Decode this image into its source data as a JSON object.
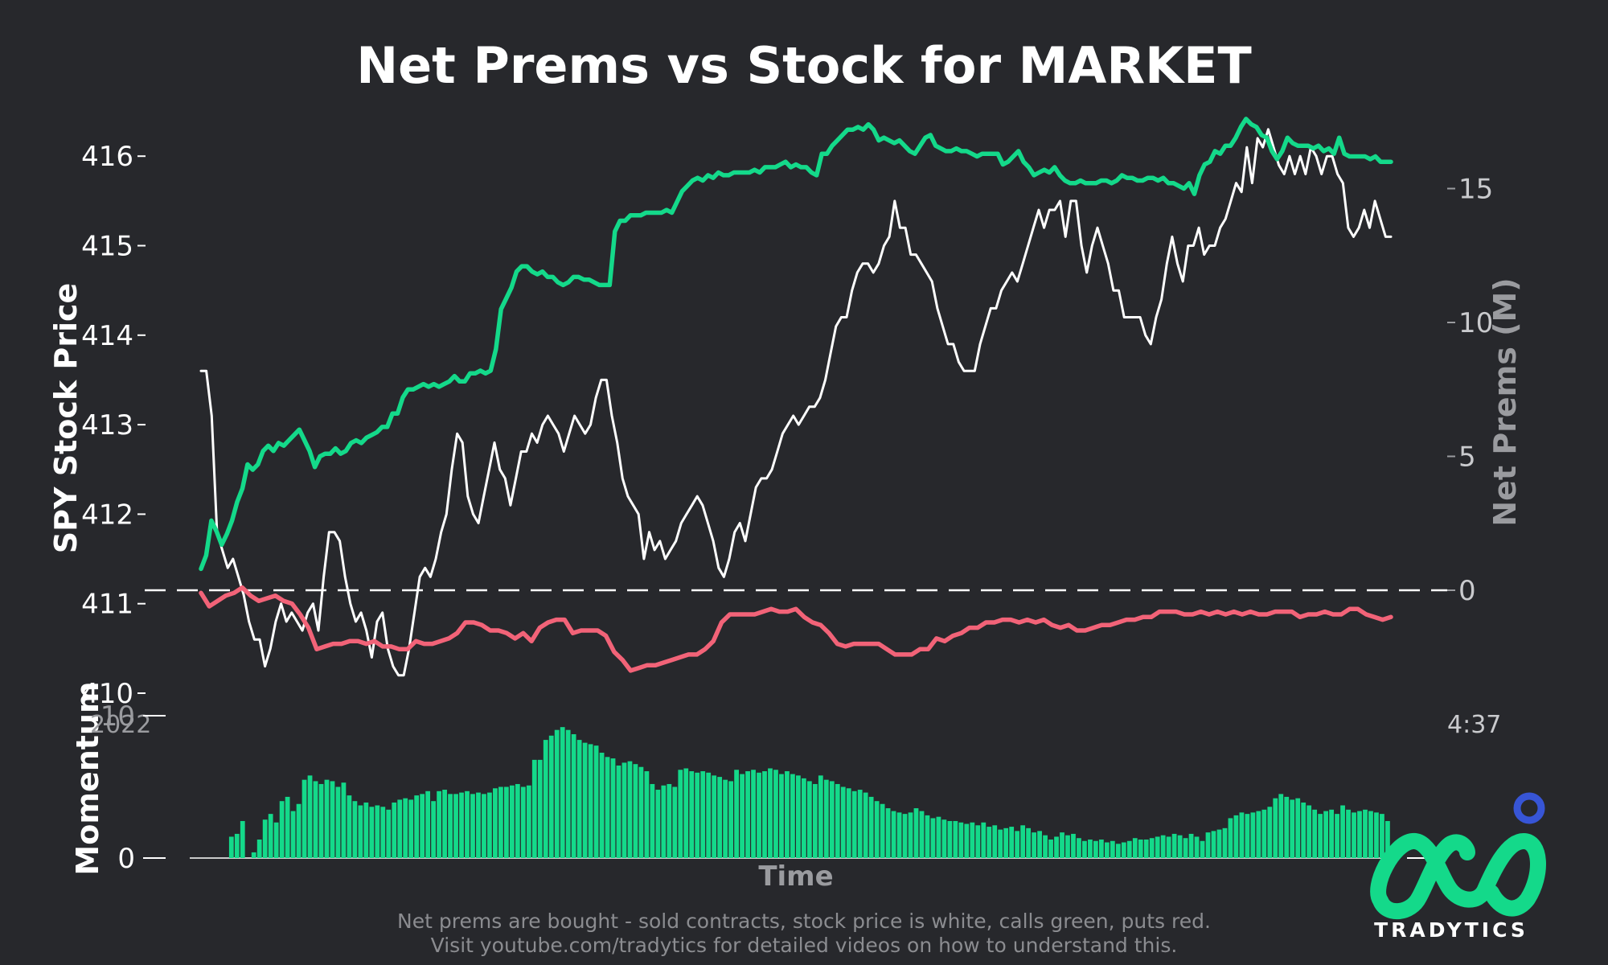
{
  "footnote": {
    "line1": "Net prems are bought - sold contracts, stock price is white, calls green, puts red.",
    "line2": "Visit youtube.com/tradytics for detailed videos on how to understand this."
  },
  "logo": {
    "wordmark": "TRADYTICS",
    "icon": "tradytics-infinity-logo",
    "accent_color": "#3755d6",
    "color": "#14d98a"
  },
  "colors": {
    "background": "#27282c",
    "stock": "#ffffff",
    "calls": "#14d98a",
    "puts": "#f26378",
    "momentum": "#14d98a",
    "axis_text": "#ffffff",
    "right_axis_text": "#9a9b9f"
  },
  "chart_data": [
    {
      "type": "line",
      "title": "Net Prems vs Stock for MARKET",
      "xlabel": "",
      "ylabel": "SPY Stock Price",
      "ylabel_right": "Net Prems (M)",
      "x_tick_labels": [
        "2022",
        "4:37"
      ],
      "ylim": [
        410,
        416.3
      ],
      "ylim_right": [
        -3,
        15.3
      ],
      "yticks": [
        410,
        411,
        412,
        413,
        414,
        415,
        416
      ],
      "yticks_right": [
        0,
        5,
        10,
        15
      ],
      "zero_line": "dashed at net prems 0",
      "grid": false,
      "series": [
        {
          "name": "SPY",
          "axis": "left",
          "color": "#ffffff",
          "values": [
            413.6,
            413.6,
            413.1,
            411.8,
            411.6,
            411.4,
            411.5,
            411.3,
            411.1,
            410.8,
            410.6,
            410.6,
            410.3,
            410.5,
            410.8,
            411.0,
            410.8,
            410.9,
            410.8,
            410.7,
            410.9,
            411.0,
            410.7,
            411.3,
            411.8,
            411.8,
            411.7,
            411.3,
            411.0,
            410.8,
            410.9,
            410.7,
            410.4,
            410.8,
            410.9,
            410.5,
            410.3,
            410.2,
            410.2,
            410.5,
            410.9,
            411.3,
            411.4,
            411.3,
            411.5,
            411.8,
            412.0,
            412.5,
            412.9,
            412.8,
            412.2,
            412.0,
            411.9,
            412.2,
            412.5,
            412.8,
            412.5,
            412.4,
            412.1,
            412.4,
            412.7,
            412.7,
            412.9,
            412.8,
            413.0,
            413.1,
            413.0,
            412.9,
            412.7,
            412.9,
            413.1,
            413.0,
            412.9,
            413.0,
            413.3,
            413.5,
            413.5,
            413.1,
            412.8,
            412.4,
            412.2,
            412.1,
            412.0,
            411.5,
            411.8,
            411.6,
            411.7,
            411.5,
            411.6,
            411.7,
            411.9,
            412.0,
            412.1,
            412.2,
            412.1,
            411.9,
            411.7,
            411.4,
            411.3,
            411.5,
            411.8,
            411.9,
            411.7,
            412.0,
            412.3,
            412.4,
            412.4,
            412.5,
            412.7,
            412.9,
            413.0,
            413.1,
            413.0,
            413.1,
            413.2,
            413.2,
            413.3,
            413.5,
            413.8,
            414.1,
            414.2,
            414.2,
            414.5,
            414.7,
            414.8,
            414.8,
            414.7,
            414.8,
            415.0,
            415.1,
            415.5,
            415.2,
            415.2,
            414.9,
            414.9,
            414.8,
            414.7,
            414.6,
            414.3,
            414.1,
            413.9,
            413.9,
            413.7,
            413.6,
            413.6,
            413.6,
            413.9,
            414.1,
            414.3,
            414.3,
            414.5,
            414.6,
            414.7,
            414.6,
            414.8,
            415.0,
            415.2,
            415.4,
            415.2,
            415.4,
            415.4,
            415.5,
            415.1,
            415.5,
            415.5,
            415.0,
            414.7,
            415.0,
            415.2,
            415.0,
            414.8,
            414.5,
            414.5,
            414.2,
            414.2,
            414.2,
            414.2,
            414.0,
            413.9,
            414.2,
            414.4,
            414.8,
            415.1,
            414.8,
            414.6,
            415.0,
            415.0,
            415.2,
            414.9,
            415.0,
            415.0,
            415.2,
            415.3,
            415.5,
            415.7,
            415.6,
            416.1,
            415.7,
            416.2,
            416.1,
            416.3,
            416.1,
            415.9,
            415.8,
            416.0,
            415.8,
            416.0,
            415.8,
            416.1,
            416.0,
            415.8,
            416.0,
            416.0,
            415.8,
            415.7,
            415.2,
            415.1,
            415.2,
            415.4,
            415.2,
            415.5,
            415.3,
            415.1,
            415.1
          ]
        },
        {
          "name": "Calls",
          "axis": "right",
          "color": "#14d98a",
          "values": [
            0.8,
            1.3,
            2.6,
            2.2,
            1.7,
            2.1,
            2.6,
            3.3,
            3.8,
            4.7,
            4.5,
            4.7,
            5.2,
            5.4,
            5.2,
            5.5,
            5.4,
            5.6,
            5.8,
            6.0,
            5.6,
            5.2,
            4.6,
            5.0,
            5.1,
            5.1,
            5.3,
            5.1,
            5.2,
            5.5,
            5.6,
            5.5,
            5.7,
            5.8,
            5.9,
            6.1,
            6.1,
            6.6,
            6.6,
            7.2,
            7.5,
            7.5,
            7.6,
            7.7,
            7.6,
            7.7,
            7.6,
            7.7,
            7.8,
            8.0,
            7.8,
            7.8,
            8.1,
            8.1,
            8.2,
            8.1,
            8.2,
            9.0,
            10.5,
            10.9,
            11.3,
            11.9,
            12.1,
            12.1,
            11.9,
            11.8,
            11.9,
            11.7,
            11.7,
            11.5,
            11.4,
            11.5,
            11.7,
            11.7,
            11.6,
            11.6,
            11.5,
            11.4,
            11.4,
            11.4,
            13.4,
            13.8,
            13.8,
            14.0,
            14.0,
            14.0,
            14.1,
            14.1,
            14.1,
            14.1,
            14.2,
            14.1,
            14.5,
            14.9,
            15.1,
            15.3,
            15.4,
            15.3,
            15.5,
            15.4,
            15.6,
            15.5,
            15.5,
            15.6,
            15.6,
            15.6,
            15.6,
            15.7,
            15.6,
            15.8,
            15.8,
            15.8,
            15.9,
            16.0,
            15.8,
            15.9,
            15.8,
            15.8,
            15.6,
            15.5,
            16.3,
            16.3,
            16.6,
            16.8,
            17.0,
            17.2,
            17.2,
            17.3,
            17.2,
            17.4,
            17.2,
            16.8,
            16.9,
            16.8,
            16.7,
            16.8,
            16.6,
            16.4,
            16.3,
            16.6,
            16.9,
            17.0,
            16.6,
            16.5,
            16.4,
            16.4,
            16.5,
            16.4,
            16.4,
            16.3,
            16.2,
            16.3,
            16.3,
            16.3,
            16.3,
            15.9,
            16.0,
            16.2,
            16.4,
            16.0,
            15.8,
            15.5,
            15.6,
            15.7,
            15.6,
            15.8,
            15.5,
            15.3,
            15.2,
            15.2,
            15.3,
            15.2,
            15.2,
            15.2,
            15.3,
            15.3,
            15.2,
            15.3,
            15.5,
            15.4,
            15.4,
            15.3,
            15.3,
            15.4,
            15.4,
            15.3,
            15.4,
            15.2,
            15.2,
            15.1,
            15.0,
            15.2,
            14.8,
            15.5,
            15.9,
            16.0,
            16.4,
            16.3,
            16.6,
            16.6,
            16.9,
            17.3,
            17.6,
            17.4,
            17.3,
            17.0,
            16.9,
            16.4,
            16.1,
            16.4,
            16.9,
            16.7,
            16.6,
            16.6,
            16.6,
            16.5,
            16.6,
            16.4,
            16.5,
            16.3,
            16.9,
            16.3,
            16.2,
            16.2,
            16.2,
            16.2,
            16.1,
            16.2,
            16.0,
            16.0,
            16.0
          ]
        },
        {
          "name": "Puts",
          "axis": "right",
          "color": "#f26378",
          "values": [
            -0.1,
            -0.6,
            -0.4,
            -0.2,
            -0.1,
            0.1,
            -0.2,
            -0.4,
            -0.3,
            -0.2,
            -0.4,
            -0.5,
            -0.9,
            -1.4,
            -2.2,
            -2.1,
            -2.0,
            -2.0,
            -1.9,
            -1.9,
            -2.0,
            -1.9,
            -2.1,
            -2.1,
            -2.2,
            -2.2,
            -1.9,
            -2.0,
            -2.0,
            -1.9,
            -1.8,
            -1.6,
            -1.2,
            -1.2,
            -1.3,
            -1.5,
            -1.5,
            -1.6,
            -1.8,
            -1.6,
            -1.9,
            -1.4,
            -1.2,
            -1.1,
            -1.1,
            -1.6,
            -1.5,
            -1.5,
            -1.5,
            -1.7,
            -2.3,
            -2.6,
            -3.0,
            -2.9,
            -2.8,
            -2.8,
            -2.7,
            -2.6,
            -2.5,
            -2.4,
            -2.4,
            -2.2,
            -1.9,
            -1.2,
            -0.9,
            -0.9,
            -0.9,
            -0.9,
            -0.8,
            -0.7,
            -0.8,
            -0.8,
            -0.7,
            -1.0,
            -1.2,
            -1.3,
            -1.6,
            -2.0,
            -2.1,
            -2.0,
            -2.0,
            -2.0,
            -2.0,
            -2.2,
            -2.4,
            -2.4,
            -2.4,
            -2.2,
            -2.2,
            -1.8,
            -1.9,
            -1.7,
            -1.6,
            -1.4,
            -1.4,
            -1.2,
            -1.2,
            -1.1,
            -1.1,
            -1.2,
            -1.1,
            -1.2,
            -1.1,
            -1.3,
            -1.4,
            -1.3,
            -1.5,
            -1.5,
            -1.4,
            -1.3,
            -1.3,
            -1.2,
            -1.1,
            -1.1,
            -1.0,
            -1.0,
            -0.8,
            -0.8,
            -0.8,
            -0.9,
            -0.9,
            -0.8,
            -0.9,
            -0.8,
            -0.9,
            -0.8,
            -0.9,
            -0.8,
            -0.9,
            -0.9,
            -0.8,
            -0.8,
            -0.8,
            -1.0,
            -0.9,
            -0.9,
            -0.8,
            -0.9,
            -0.9,
            -0.7,
            -0.7,
            -0.9,
            -1.0,
            -1.1,
            -1.0
          ]
        }
      ]
    },
    {
      "type": "bar",
      "xlabel": "Time",
      "ylabel": "Momentum",
      "yticks": [
        0,
        10
      ],
      "ylim": [
        0,
        10
      ],
      "grid": false,
      "series": [
        {
          "name": "Momentum",
          "color": "#14d98a",
          "values": [
            0,
            0,
            0,
            0,
            0,
            1.5,
            1.7,
            2.6,
            0,
            0.4,
            1.3,
            2.7,
            3.1,
            2.5,
            4.0,
            4.3,
            3.3,
            3.8,
            5.5,
            5.8,
            5.4,
            5.2,
            5.5,
            5.4,
            5.0,
            5.3,
            4.4,
            4.0,
            3.7,
            3.9,
            3.6,
            3.7,
            3.6,
            3.4,
            3.9,
            4.1,
            4.2,
            4.1,
            4.4,
            4.5,
            4.7,
            4.0,
            4.7,
            4.8,
            4.5,
            4.5,
            4.6,
            4.7,
            4.5,
            4.6,
            4.5,
            4.6,
            4.9,
            5.0,
            5.0,
            5.1,
            5.2,
            5.0,
            5.1,
            6.9,
            6.9,
            8.3,
            8.6,
            9.0,
            9.2,
            9.0,
            8.7,
            8.3,
            8.1,
            8.0,
            7.9,
            7.4,
            7.1,
            7.0,
            6.5,
            6.7,
            6.8,
            6.6,
            6.4,
            6.1,
            5.2,
            4.8,
            5.1,
            5.2,
            5.0,
            6.2,
            6.3,
            6.1,
            6.0,
            6.1,
            6.0,
            5.8,
            5.7,
            5.5,
            5.4,
            6.2,
            5.9,
            6.1,
            6.2,
            6.0,
            6.1,
            6.3,
            6.2,
            5.9,
            6.1,
            5.9,
            5.8,
            5.6,
            5.4,
            5.2,
            5.8,
            5.5,
            5.4,
            5.2,
            5.0,
            4.9,
            4.7,
            4.8,
            4.6,
            4.3,
            4.0,
            3.8,
            3.5,
            3.3,
            3.2,
            3.1,
            3.2,
            3.5,
            3.3,
            3.0,
            2.8,
            2.9,
            2.7,
            2.6,
            2.6,
            2.5,
            2.4,
            2.5,
            2.3,
            2.5,
            2.2,
            2.3,
            2.0,
            2.1,
            2.2,
            1.9,
            2.3,
            2.1,
            1.8,
            1.9,
            1.6,
            1.3,
            1.5,
            1.8,
            1.6,
            1.7,
            1.4,
            1.2,
            1.3,
            1.2,
            1.3,
            1.1,
            1.2,
            1.0,
            1.1,
            1.2,
            1.4,
            1.3,
            1.3,
            1.4,
            1.5,
            1.6,
            1.5,
            1.7,
            1.6,
            1.4,
            1.7,
            1.5,
            1.2,
            1.8,
            1.9,
            2.0,
            2.1,
            2.8,
            3.0,
            3.2,
            3.1,
            3.2,
            3.3,
            3.4,
            3.6,
            4.2,
            4.5,
            4.3,
            4.1,
            4.2,
            3.9,
            3.7,
            3.4,
            3.1,
            3.3,
            3.4,
            3.1,
            3.7,
            3.4,
            3.2,
            3.3,
            3.4,
            3.3,
            3.2,
            3.1,
            2.6
          ]
        }
      ]
    }
  ]
}
